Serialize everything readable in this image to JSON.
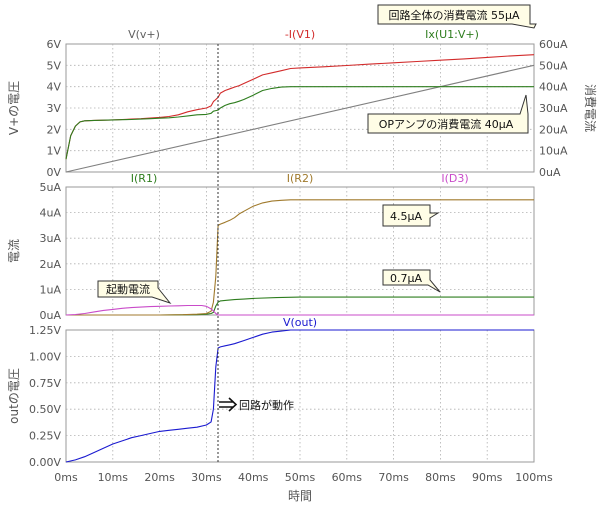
{
  "chart_data": [
    {
      "type": "line",
      "panel": "top",
      "ylabel_left": "V+の電圧",
      "ylabel_right": "消費電流",
      "ylim_left": [
        0,
        6
      ],
      "yticks_left": [
        "0V",
        "1V",
        "2V",
        "3V",
        "4V",
        "5V",
        "6V"
      ],
      "ylim_right": [
        0,
        60
      ],
      "yticks_right": [
        "0uA",
        "10uA",
        "20uA",
        "30uA",
        "40uA",
        "50uA",
        "60uA"
      ],
      "grid": true,
      "series": [
        {
          "name": "V(v+)",
          "color": "#808080",
          "axis": "left",
          "x": [
            0,
            100
          ],
          "y": [
            0,
            5.0
          ]
        },
        {
          "name": "-I(V1)",
          "color": "#d22b2b",
          "axis": "right",
          "x": [
            0,
            1,
            2,
            3,
            4,
            6,
            8,
            10,
            12,
            14,
            16,
            18,
            20,
            22,
            24,
            26,
            28,
            30,
            31,
            31.5,
            32,
            32.5,
            33,
            34,
            35,
            36,
            37,
            38,
            40,
            42,
            44,
            46,
            48,
            50,
            55,
            60,
            65,
            70,
            75,
            80,
            85,
            90,
            95,
            100
          ],
          "y": [
            6,
            17,
            21.5,
            23.5,
            24,
            24.2,
            24.3,
            24.4,
            24.6,
            24.8,
            25,
            25.3,
            25.6,
            26,
            26.8,
            28.2,
            29.2,
            30,
            31,
            33,
            34,
            35,
            37,
            38.2,
            39,
            39.8,
            40.5,
            41.5,
            43.5,
            45.5,
            46.5,
            47.5,
            48.5,
            48.8,
            49.3,
            49.9,
            50.6,
            51.2,
            51.8,
            52.4,
            53,
            53.7,
            54.4,
            55
          ]
        },
        {
          "name": "Ix(U1:V+)",
          "color": "#2e7d1e",
          "axis": "right",
          "x": [
            0,
            1,
            2,
            3,
            4,
            6,
            8,
            10,
            12,
            14,
            16,
            18,
            20,
            22,
            24,
            26,
            28,
            30,
            31,
            31.5,
            32,
            32.5,
            33,
            34,
            35,
            36,
            37,
            38,
            40,
            42,
            44,
            46,
            48,
            50,
            55,
            60,
            65,
            70,
            75,
            80,
            85,
            90,
            95,
            100
          ],
          "y": [
            6,
            17,
            21.5,
            23.5,
            24,
            24.2,
            24.3,
            24.4,
            24.5,
            24.6,
            24.8,
            25,
            25.2,
            25.4,
            25.8,
            26.3,
            26.8,
            27,
            27.5,
            28.5,
            28.8,
            29,
            30,
            31.2,
            32,
            32.5,
            33.2,
            34,
            36,
            38.2,
            39.2,
            39.8,
            40,
            40,
            40,
            40,
            40,
            40,
            40,
            40,
            40,
            40,
            40,
            40
          ]
        }
      ],
      "annotations": [
        "回路全体の消費電流 55μA",
        "OPアンプの消費電流 40μA"
      ]
    },
    {
      "type": "line",
      "panel": "middle",
      "ylabel_left": "電流",
      "ylim_left": [
        0,
        5
      ],
      "yticks_left": [
        "0uA",
        "1uA",
        "2uA",
        "3uA",
        "4uA",
        "5uA"
      ],
      "grid": true,
      "series": [
        {
          "name": "I(R1)",
          "color": "#2e7d1e",
          "x": [
            0,
            10,
            20,
            28,
            30,
            31,
            31.5,
            32,
            32.5,
            33,
            34,
            36,
            38,
            40,
            45,
            50,
            60,
            100
          ],
          "y": [
            0,
            0,
            0,
            0.01,
            0.03,
            0.06,
            0.1,
            0.35,
            0.5,
            0.55,
            0.57,
            0.6,
            0.62,
            0.65,
            0.68,
            0.7,
            0.7,
            0.7
          ]
        },
        {
          "name": "I(R2)",
          "color": "#a07a2c",
          "x": [
            0,
            10,
            20,
            25,
            28,
            30,
            31,
            31.5,
            32,
            32.5,
            33,
            34,
            35,
            36,
            37,
            38,
            40,
            42,
            44,
            46,
            48,
            50,
            55,
            60,
            100
          ],
          "y": [
            0,
            0,
            0,
            0.01,
            0.03,
            0.06,
            0.15,
            0.5,
            1.5,
            3.5,
            3.55,
            3.62,
            3.7,
            3.8,
            3.95,
            4.05,
            4.25,
            4.38,
            4.45,
            4.48,
            4.5,
            4.5,
            4.5,
            4.5,
            4.5
          ]
        },
        {
          "name": "I(D3)",
          "color": "#c94bc9",
          "x": [
            0,
            2,
            4,
            6,
            8,
            10,
            12,
            14,
            16,
            18,
            20,
            22,
            24,
            26,
            28,
            29,
            30,
            31,
            31.5,
            32,
            32.5,
            33,
            100
          ],
          "y": [
            0,
            0.02,
            0.06,
            0.12,
            0.18,
            0.22,
            0.26,
            0.29,
            0.31,
            0.33,
            0.34,
            0.35,
            0.36,
            0.37,
            0.37,
            0.37,
            0.34,
            0.24,
            0.16,
            0.06,
            0,
            0,
            0
          ]
        }
      ],
      "annotations": [
        "4.5μA",
        "0.7μA",
        "起動電流"
      ]
    },
    {
      "type": "line",
      "panel": "bottom",
      "ylabel_left": "outの電圧",
      "xlabel": "時間",
      "ylim_left": [
        0,
        1.25
      ],
      "yticks_left": [
        "0.00V",
        "0.25V",
        "0.50V",
        "0.75V",
        "1.00V",
        "1.25V"
      ],
      "xlim": [
        0,
        100
      ],
      "xticks": [
        "0ms",
        "10ms",
        "20ms",
        "30ms",
        "40ms",
        "50ms",
        "60ms",
        "70ms",
        "80ms",
        "90ms",
        "100ms"
      ],
      "grid": true,
      "series": [
        {
          "name": "V(out)",
          "color": "#1a1ad0",
          "x": [
            0,
            2,
            4,
            6,
            8,
            10,
            12,
            14,
            16,
            18,
            20,
            22,
            24,
            26,
            28,
            30,
            31,
            31.5,
            32,
            32.5,
            33,
            34,
            35,
            36,
            38,
            40,
            42,
            44,
            46,
            48,
            50,
            60,
            100
          ],
          "y": [
            0,
            0.02,
            0.05,
            0.09,
            0.13,
            0.17,
            0.2,
            0.23,
            0.25,
            0.27,
            0.29,
            0.3,
            0.31,
            0.32,
            0.33,
            0.35,
            0.38,
            0.5,
            0.9,
            1.08,
            1.09,
            1.1,
            1.11,
            1.12,
            1.15,
            1.18,
            1.21,
            1.23,
            1.24,
            1.25,
            1.25,
            1.25,
            1.25
          ]
        }
      ],
      "annotations": [
        "回路が動作"
      ]
    }
  ]
}
